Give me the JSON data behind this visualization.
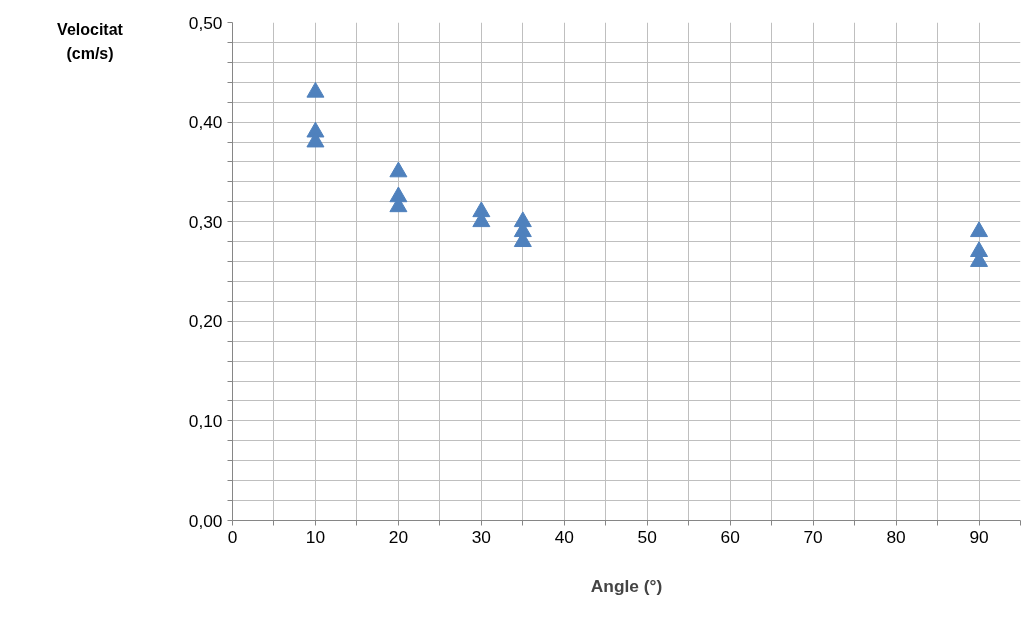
{
  "chart_data": {
    "type": "scatter",
    "xlabel": "Angle (°)",
    "ylabel": "Velocitat\n(cm/s)",
    "series": [
      {
        "color": "#4f81bd",
        "x": [
          10,
          10,
          10,
          20,
          20,
          20,
          30,
          30,
          35,
          35,
          35,
          90,
          90,
          90
        ],
        "values": [
          0.43,
          0.39,
          0.38,
          0.35,
          0.325,
          0.315,
          0.31,
          0.3,
          0.3,
          0.29,
          0.28,
          0.29,
          0.27,
          0.26
        ]
      }
    ],
    "xlim": [
      0,
      95
    ],
    "ylim": [
      0,
      0.5
    ],
    "xticks": [
      0,
      {
        "value": 5,
        "label": null
      },
      10,
      {
        "value": 15,
        "label": null
      },
      20,
      {
        "value": 25,
        "label": null
      },
      30,
      {
        "value": 35,
        "label": null
      },
      40,
      {
        "value": 45,
        "label": null
      },
      50,
      {
        "value": 55,
        "label": null
      },
      60,
      {
        "value": 65,
        "label": null
      },
      70,
      {
        "value": 75,
        "label": null
      },
      80,
      {
        "value": 85,
        "label": null
      },
      90,
      {
        "value": 95,
        "label": null
      }
    ],
    "yticks": [
      {
        "value": 0,
        "label": "0,00"
      },
      {
        "value": 0.02,
        "label": null
      },
      {
        "value": 0.04,
        "label": null
      },
      {
        "value": 0.06,
        "label": null
      },
      {
        "value": 0.08,
        "label": null
      },
      {
        "value": 0.1,
        "label": "0,10"
      },
      {
        "value": 0.12,
        "label": null
      },
      {
        "value": 0.14,
        "label": null
      },
      {
        "value": 0.16,
        "label": null
      },
      {
        "value": 0.18,
        "label": null
      },
      {
        "value": 0.2,
        "label": "0,20"
      },
      {
        "value": 0.22,
        "label": null
      },
      {
        "value": 0.24,
        "label": null
      },
      {
        "value": 0.26,
        "label": null
      },
      {
        "value": 0.28,
        "label": null
      },
      {
        "value": 0.3,
        "label": "0,30"
      },
      {
        "value": 0.32,
        "label": null
      },
      {
        "value": 0.34,
        "label": null
      },
      {
        "value": 0.36,
        "label": null
      },
      {
        "value": 0.38,
        "label": null
      },
      {
        "value": 0.4,
        "label": "0,40"
      },
      {
        "value": 0.42,
        "label": null
      },
      {
        "value": 0.44,
        "label": null
      },
      {
        "value": 0.46,
        "label": null
      },
      {
        "value": 0.48,
        "label": null
      },
      {
        "value": 0.5,
        "label": "0,50"
      }
    ],
    "grid": true,
    "marker": "triangle"
  }
}
